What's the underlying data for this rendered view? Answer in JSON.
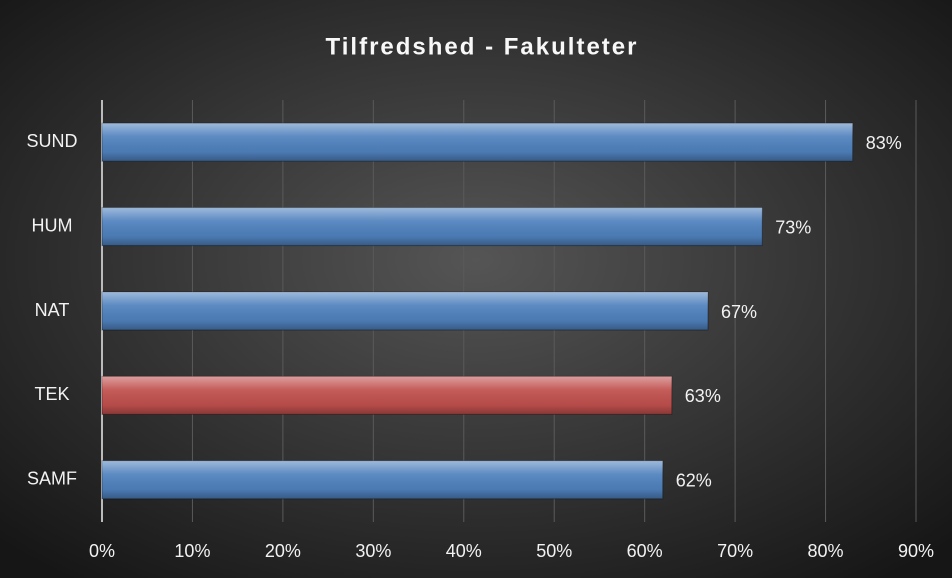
{
  "chart_data": {
    "type": "bar",
    "orientation": "horizontal",
    "title": "Tilfredshed - Fakulteter",
    "categories": [
      "SUND",
      "HUM",
      "NAT",
      "TEK",
      "SAMF"
    ],
    "values": [
      83,
      73,
      67,
      63,
      62
    ],
    "value_labels": [
      "83%",
      "73%",
      "67%",
      "63%",
      "62%"
    ],
    "colors": [
      "#4f81bd",
      "#4f81bd",
      "#4f81bd",
      "#c0504d",
      "#4f81bd"
    ],
    "xlim": [
      0,
      90
    ],
    "xticks": [
      {
        "value": 0,
        "label": "0%"
      },
      {
        "value": 10,
        "label": "10%"
      },
      {
        "value": 20,
        "label": "20%"
      },
      {
        "value": 30,
        "label": "30%"
      },
      {
        "value": 40,
        "label": "40%"
      },
      {
        "value": 50,
        "label": "50%"
      },
      {
        "value": 60,
        "label": "60%"
      },
      {
        "value": 70,
        "label": "70%"
      },
      {
        "value": 80,
        "label": "80%"
      },
      {
        "value": 90,
        "label": "90%"
      }
    ],
    "grid": true
  }
}
